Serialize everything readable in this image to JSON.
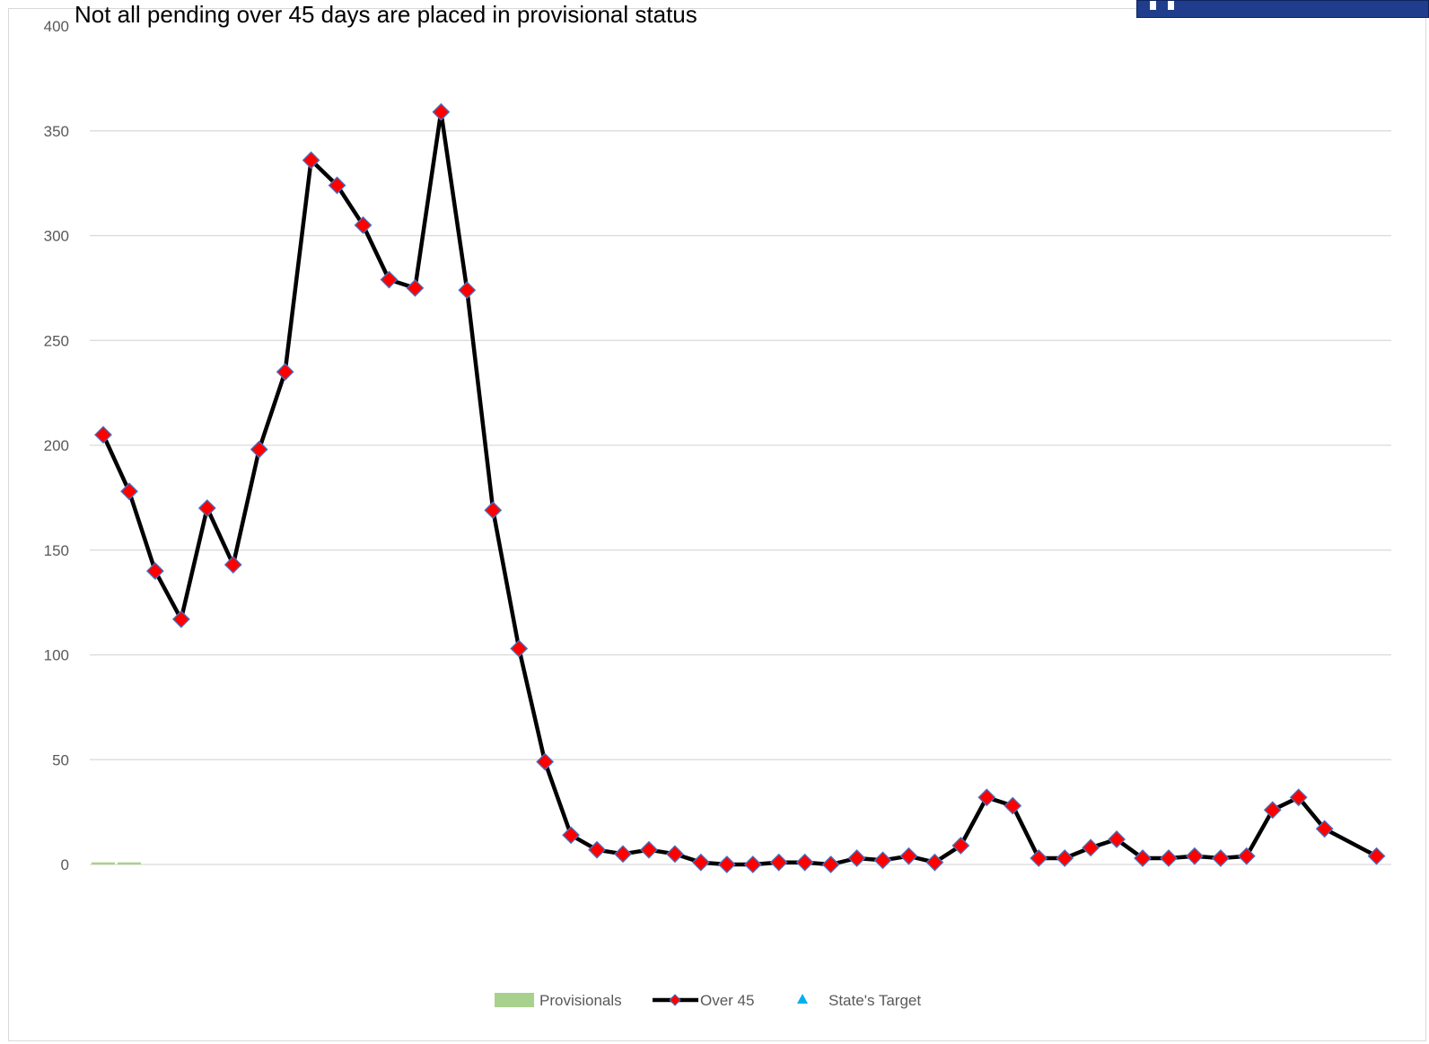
{
  "chart_data": {
    "type": "line",
    "title": "Not all pending over 45 days are placed in provisional status",
    "xlabel": "",
    "ylabel": "",
    "ylim": [
      0,
      400
    ],
    "yticks": [
      0,
      50,
      100,
      150,
      200,
      250,
      300,
      350,
      400
    ],
    "grid": true,
    "legend_placement": "bottom",
    "series": [
      {
        "name": "Provisionals",
        "kind": "bar",
        "color": "#a9d18e",
        "values": [
          1,
          1,
          null,
          null,
          null,
          null,
          null,
          null,
          null,
          null,
          null,
          null,
          null,
          null,
          null,
          null,
          null,
          null,
          null,
          null,
          null,
          null,
          null,
          null,
          null,
          null,
          null,
          null,
          null,
          null,
          null,
          null,
          null,
          null,
          null,
          null,
          null,
          null,
          null,
          null,
          null,
          null,
          null,
          null,
          null,
          null,
          null,
          null,
          null,
          null
        ]
      },
      {
        "name": "Over 45",
        "kind": "line",
        "color": "#000000",
        "marker_color": "#ff0000",
        "marker_edge": "#4472c4",
        "values": [
          205,
          178,
          140,
          117,
          170,
          143,
          198,
          235,
          336,
          324,
          305,
          279,
          275,
          359,
          274,
          169,
          103,
          49,
          14,
          7,
          5,
          7,
          5,
          1,
          0,
          0,
          1,
          1,
          0,
          3,
          2,
          4,
          1,
          9,
          32,
          28,
          3,
          3,
          8,
          12,
          3,
          3,
          4,
          3,
          4,
          26,
          32,
          17,
          null,
          4
        ]
      },
      {
        "name": "State's Target",
        "kind": "marker",
        "color": "#00b0f0",
        "values": []
      }
    ]
  },
  "logo": {
    "color": "#1f3d8c"
  }
}
